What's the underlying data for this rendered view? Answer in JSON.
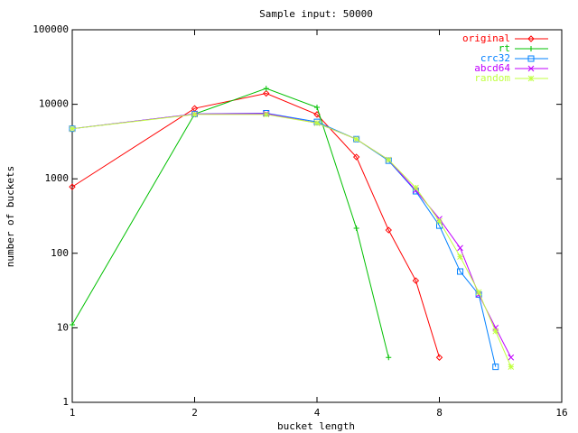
{
  "chart_data": {
    "type": "line",
    "title": "Sample input: 50000",
    "x_label": "bucket length",
    "y_label": "number of buckets",
    "x": [
      1,
      2,
      3,
      4,
      5,
      6,
      7,
      8,
      9,
      10,
      11,
      12
    ],
    "xlim": [
      1,
      16
    ],
    "xticks": [
      1,
      2,
      4,
      8,
      16
    ],
    "xlog": true,
    "ylim": [
      1,
      100000
    ],
    "yticks": [
      1,
      10,
      100,
      1000,
      10000,
      100000
    ],
    "ylog": true,
    "legend": "top-right",
    "series": [
      {
        "name": "original",
        "color": "#ff0000",
        "values": [
          780,
          8800,
          14000,
          7300,
          1960,
          205,
          43,
          4,
          null,
          null,
          null,
          null
        ]
      },
      {
        "name": "rt",
        "color": "#00c000",
        "values": [
          11,
          7400,
          16300,
          9100,
          217,
          4,
          null,
          null,
          null,
          null,
          null,
          null
        ]
      },
      {
        "name": "crc32",
        "color": "#0080ff",
        "values": [
          4700,
          7400,
          7600,
          5800,
          3400,
          1750,
          680,
          235,
          57,
          28,
          3,
          null
        ]
      },
      {
        "name": "abcd64",
        "color": "#c000ff",
        "values": [
          4700,
          7400,
          7500,
          5600,
          3400,
          1800,
          700,
          290,
          118,
          28,
          10,
          4
        ]
      },
      {
        "name": "random",
        "color": "#c0ff40",
        "values": [
          4700,
          7300,
          7300,
          5600,
          3400,
          1800,
          760,
          270,
          90,
          30,
          9,
          3
        ]
      }
    ]
  }
}
